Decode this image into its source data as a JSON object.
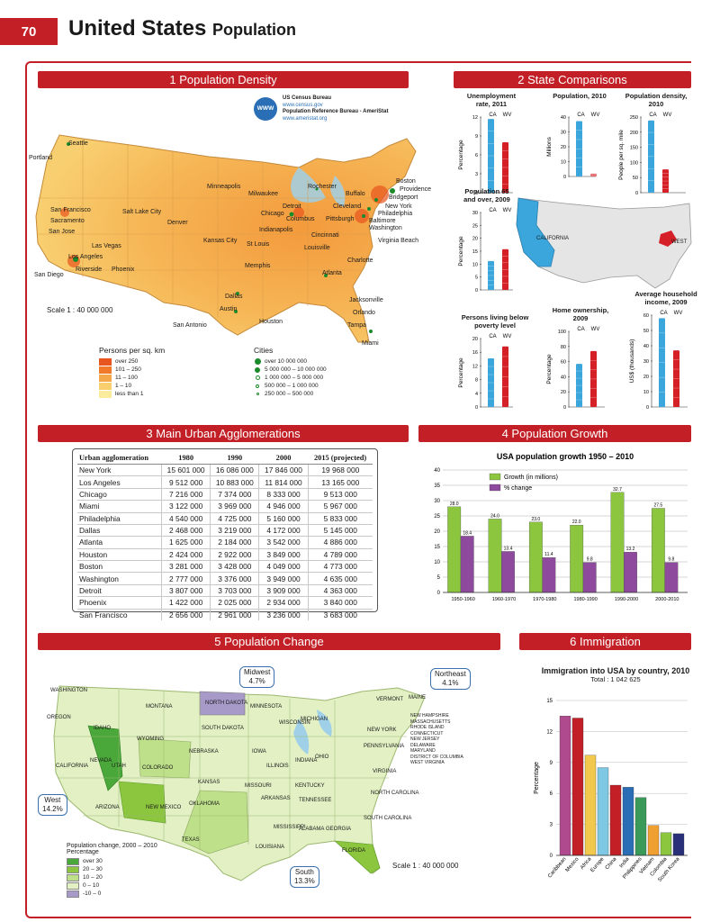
{
  "page": {
    "number": "70",
    "title": "United States",
    "subtitle": "Population"
  },
  "sections": {
    "s1": "1 Population Density",
    "s2": "2 State Comparisons",
    "s3": "3 Main Urban Agglomerations",
    "s4": "4 Population Growth",
    "s5": "5 Population Change",
    "s6": "6 Immigration"
  },
  "sources": {
    "line1": "US Census Bureau",
    "line2": "www.census.gov",
    "line3": "Population Reference Bureau - AmeriStat",
    "line4": "www.ameristat.org",
    "badge": "WWW"
  },
  "density_map": {
    "scale": "Scale 1 : 40 000 000",
    "legend_title": "Persons per sq. km",
    "legend": [
      {
        "label": "over 250",
        "color": "#e8551e"
      },
      {
        "label": "101 – 250",
        "color": "#f07a2a"
      },
      {
        "label": "11 – 100",
        "color": "#f5a84a"
      },
      {
        "label": "1 – 10",
        "color": "#f9cf6e"
      },
      {
        "label": "less than 1",
        "color": "#fbeb9c"
      }
    ],
    "cities_title": "Cities",
    "cities_legend": [
      "over 10 000 000",
      "5 000 000 – 10 000 000",
      "1 000 000 – 5 000 000",
      "500 000 – 1 000 000",
      "250 000 – 500 000"
    ],
    "cities": [
      "Seattle",
      "Portland",
      "San Francisco",
      "Sacramento",
      "San Jose",
      "Las Vegas",
      "Los Angeles",
      "Riverside",
      "Phoenix",
      "San Diego",
      "Salt Lake City",
      "Denver",
      "Minneapolis",
      "Milwaukee",
      "Chicago",
      "Detroit",
      "Rochester",
      "Buffalo",
      "Cleveland",
      "Columbus",
      "Pittsburgh",
      "Indianapolis",
      "Cincinnati",
      "Kansas City",
      "St Louis",
      "Louisville",
      "Memphis",
      "Atlanta",
      "Dallas",
      "Austin",
      "San Antonio",
      "Houston",
      "Charlotte",
      "Virginia Beach",
      "Boston",
      "Providence",
      "Bridgeport",
      "New York",
      "Philadelphia",
      "Baltimore",
      "Washington",
      "Jacksonville",
      "Orlando",
      "Tampa",
      "Miami"
    ]
  },
  "state_comparisons": {
    "unemployment": {
      "title": "Unemployment rate, 2011",
      "ylabel": "Percentage",
      "labels": [
        "CA",
        "WV"
      ],
      "values": [
        11.7,
        8.0
      ],
      "yticks": [
        "12",
        "9",
        "6",
        "3",
        "0"
      ]
    },
    "population": {
      "title": "Population, 2010",
      "ylabel": "Millions",
      "labels": [
        "CA",
        "WV"
      ],
      "values": [
        37.3,
        1.9
      ],
      "yticks": [
        "40",
        "30",
        "20",
        "10",
        "0"
      ]
    },
    "density": {
      "title": "Population density, 2010",
      "ylabel": "People per sq. mile",
      "labels": [
        "CA",
        "WV"
      ],
      "values": [
        239,
        77
      ],
      "yticks": [
        "250",
        "200",
        "150",
        "100",
        "50",
        "0"
      ]
    },
    "over65": {
      "title": "Population 65 and over, 2009",
      "ylabel": "Percentage",
      "labels": [
        "CA",
        "WV"
      ],
      "values": [
        11.2,
        15.8
      ],
      "yticks": [
        "30",
        "25",
        "20",
        "15",
        "10",
        "5",
        "0"
      ]
    },
    "poverty": {
      "title": "Persons living below poverty level",
      "ylabel": "Percentage",
      "labels": [
        "CA",
        "WV"
      ],
      "values": [
        14.2,
        17.7
      ],
      "yticks": [
        "20",
        "16",
        "12",
        "8",
        "4",
        "0"
      ]
    },
    "home": {
      "title": "Home ownership, 2009",
      "ylabel": "Percentage",
      "labels": [
        "CA",
        "WV"
      ],
      "values": [
        57,
        74
      ],
      "yticks": [
        "100",
        "80",
        "60",
        "40",
        "20",
        "0"
      ]
    },
    "income": {
      "title": "Average household income, 2009",
      "ylabel": "US$ (thousands)",
      "labels": [
        "CA",
        "WV"
      ],
      "values": [
        58,
        37
      ],
      "yticks": [
        "60",
        "50",
        "40",
        "30",
        "20",
        "10",
        "0"
      ]
    },
    "map_labels": {
      "california": "CALIFORNIA",
      "west": "WEST"
    }
  },
  "urban_table": {
    "headers": [
      "Urban agglomeration",
      "1980",
      "1990",
      "2000",
      "2015 (projected)"
    ],
    "rows": [
      [
        "New York",
        "15 601 000",
        "16 086 000",
        "17 846 000",
        "19 968 000"
      ],
      [
        "Los Angeles",
        "9 512 000",
        "10 883 000",
        "11 814 000",
        "13 165 000"
      ],
      [
        "Chicago",
        "7 216 000",
        "7 374 000",
        "8 333 000",
        "9 513 000"
      ],
      [
        "Miami",
        "3 122 000",
        "3 969 000",
        "4 946 000",
        "5 967 000"
      ],
      [
        "Philadelphia",
        "4 540 000",
        "4 725 000",
        "5 160 000",
        "5 833 000"
      ],
      [
        "Dallas",
        "2 468 000",
        "3 219 000",
        "4 172 000",
        "5 145 000"
      ],
      [
        "Atlanta",
        "1 625 000",
        "2 184 000",
        "3 542 000",
        "4 886 000"
      ],
      [
        "Houston",
        "2 424 000",
        "2 922 000",
        "3 849 000",
        "4 789 000"
      ],
      [
        "Boston",
        "3 281 000",
        "3 428 000",
        "4 049 000",
        "4 773 000"
      ],
      [
        "Washington",
        "2 777 000",
        "3 376 000",
        "3 949 000",
        "4 635 000"
      ],
      [
        "Detroit",
        "3 807 000",
        "3 703 000",
        "3 909 000",
        "4 363 000"
      ],
      [
        "Phoenix",
        "1 422 000",
        "2 025 000",
        "2 934 000",
        "3 840 000"
      ],
      [
        "San Francisco",
        "2 656 000",
        "2 961 000",
        "3 236 000",
        "3 683 000"
      ]
    ]
  },
  "chart_data": [
    {
      "type": "bar",
      "title": "USA population growth 1950 – 2010",
      "categories": [
        "1950-1960",
        "1960-1970",
        "1970-1980",
        "1980-1990",
        "1990-2000",
        "2000-2010"
      ],
      "series": [
        {
          "name": "Growth (in millions)",
          "color": "#8cc63f",
          "values": [
            28.0,
            24.0,
            23.0,
            22.0,
            32.7,
            27.5
          ]
        },
        {
          "name": "% change",
          "color": "#8e4a9c",
          "values": [
            18.4,
            13.4,
            11.4,
            9.8,
            13.2,
            9.8
          ]
        }
      ],
      "value_labels": {
        "growth": [
          "28.0",
          "24.0",
          "23.0",
          "22.0",
          "32.7",
          "27.5"
        ],
        "pct": [
          "18.4",
          "13.4",
          "11.4",
          "9.8",
          "13.2",
          "9.8"
        ]
      },
      "ylim": [
        0,
        40
      ],
      "yticks": [
        "40",
        "35",
        "30",
        "25",
        "20",
        "15",
        "10",
        "5",
        "0"
      ]
    },
    {
      "type": "bar",
      "title": "Immigration into USA by country, 2010",
      "subtitle": "Total : 1 042 625",
      "ylabel": "Percentage",
      "categories": [
        "Caribbean",
        "Mexico",
        "Africa",
        "Europe",
        "China",
        "India",
        "Philippines",
        "Vietnam",
        "Colombia",
        "South Korea"
      ],
      "values": [
        13.5,
        13.3,
        9.7,
        8.5,
        6.8,
        6.6,
        5.6,
        2.9,
        2.2,
        2.1
      ],
      "colors": [
        "#b04a8e",
        "#c22026",
        "#f2c94c",
        "#7ec8e3",
        "#c22026",
        "#2a6fb5",
        "#3a9a5a",
        "#f0a030",
        "#8cc63f",
        "#2a2f7a"
      ],
      "ylim": [
        0,
        15
      ],
      "yticks": [
        "15",
        "12",
        "9",
        "6",
        "3",
        "0"
      ]
    }
  ],
  "population_change": {
    "callouts": {
      "midwest": {
        "name": "Midwest",
        "value": "4.7%"
      },
      "northeast": {
        "name": "Northeast",
        "value": "4.1%"
      },
      "west": {
        "name": "West",
        "value": "14.2%"
      },
      "south": {
        "name": "South",
        "value": "13.3%"
      }
    },
    "legend_title": "Population change, 2000 – 2010",
    "legend_sub": "Percentage",
    "legend": [
      {
        "label": "over 30",
        "color": "#4aa83a"
      },
      {
        "label": "20 – 30",
        "color": "#8cc63f"
      },
      {
        "label": "10 – 20",
        "color": "#bfe08a"
      },
      {
        "label": "0 – 10",
        "color": "#e2f0c4"
      },
      {
        "label": "-10 – 0",
        "color": "#a89ac8"
      }
    ],
    "scale": "Scale 1 : 40 000 000",
    "states": [
      "WASHINGTON",
      "OREGON",
      "IDAHO",
      "MONTANA",
      "WYOMING",
      "NEVADA",
      "CALIFORNIA",
      "UTAH",
      "COLORADO",
      "ARIZONA",
      "NEW MEXICO",
      "NORTH DAKOTA",
      "SOUTH DAKOTA",
      "NEBRASKA",
      "KANSAS",
      "OKLAHOMA",
      "TEXAS",
      "MINNESOTA",
      "IOWA",
      "MISSOURI",
      "ARKANSAS",
      "LOUISIANA",
      "WISCONSIN",
      "ILLINOIS",
      "MICHIGAN",
      "INDIANA",
      "OHIO",
      "KENTUCKY",
      "TENNESSEE",
      "MISSISSIPPI",
      "ALABAMA",
      "GEORGIA",
      "FLORIDA",
      "SOUTH CAROLINA",
      "NORTH CAROLINA",
      "VIRGINIA",
      "NEW YORK",
      "PENNSYLVANIA",
      "VERMONT",
      "MAINE"
    ],
    "ne_list": [
      "NEW HAMPSHIRE",
      "MASSACHUSETTS",
      "RHODE ISLAND",
      "CONNECTICUT",
      "NEW JERSEY",
      "DELAWARE",
      "MARYLAND",
      "DISTRICT OF COLUMBIA",
      "WEST VIRGINIA"
    ]
  }
}
